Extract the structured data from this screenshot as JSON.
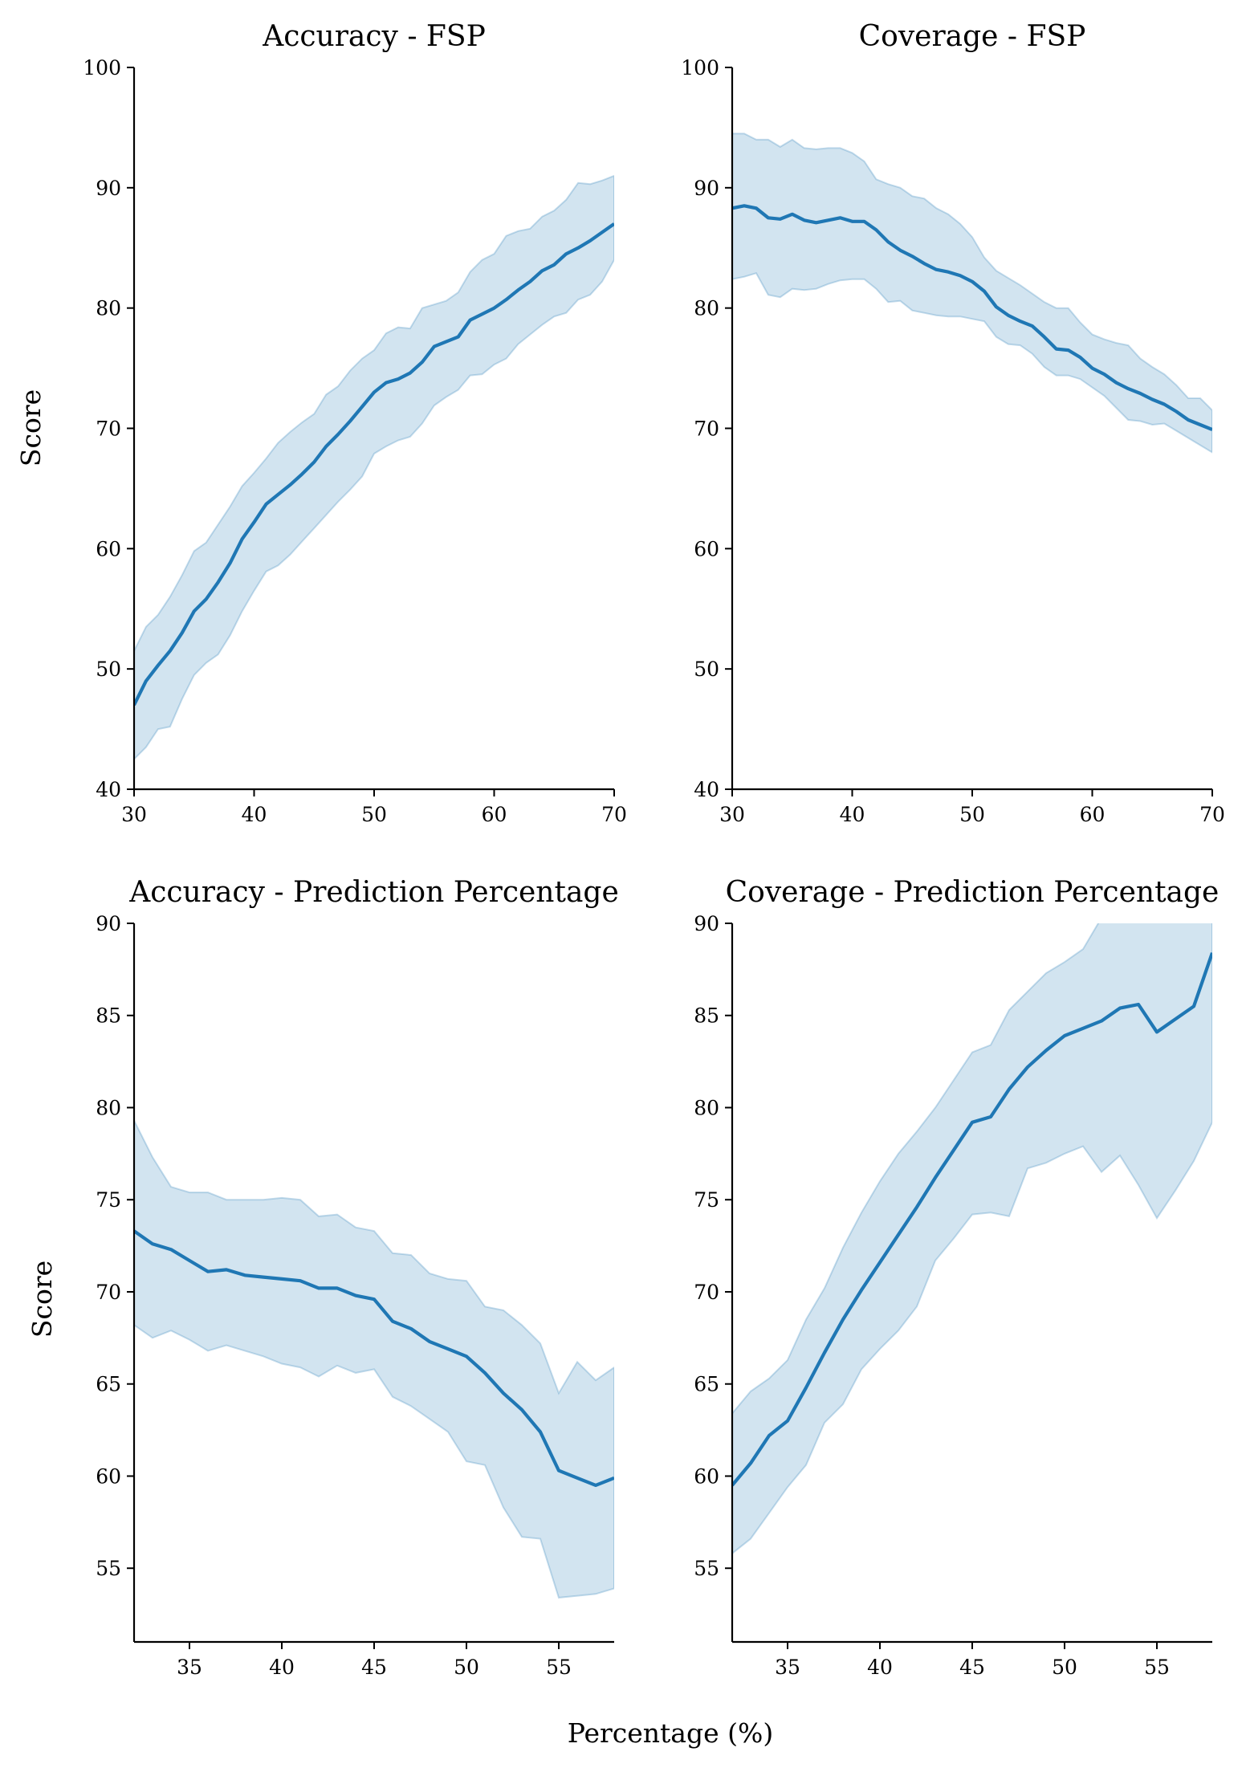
{
  "figure": {
    "xlabel": "Percentage (%)"
  },
  "style": {
    "line_color": "#1f77b4",
    "band_color": "#1f77b4",
    "band_opacity": 0.2,
    "axis_color": "#000000"
  },
  "chart_data": [
    {
      "type": "line",
      "title": "Accuracy - FSP",
      "ylabel": "Score",
      "xlim": [
        30,
        70
      ],
      "ylim": [
        40,
        100
      ],
      "xticks": [
        30,
        40,
        50,
        60,
        70
      ],
      "yticks": [
        40,
        50,
        60,
        70,
        80,
        90,
        100
      ],
      "grid": false,
      "x": [
        30,
        31,
        32,
        33,
        34,
        35,
        36,
        37,
        38,
        39,
        40,
        41,
        42,
        43,
        44,
        45,
        46,
        47,
        48,
        49,
        50,
        51,
        52,
        53,
        54,
        55,
        56,
        57,
        58,
        59,
        60,
        61,
        62,
        63,
        64,
        65,
        66,
        67,
        68,
        69,
        70
      ],
      "series": [
        {
          "mean": [
            47,
            49,
            50.3,
            51.5,
            53,
            54.8,
            55.8,
            57.2,
            58.8,
            60.8,
            62.2,
            63.7,
            64.5,
            65.3,
            66.2,
            67.2,
            68.5,
            69.5,
            70.6,
            71.8,
            73,
            73.8,
            74.1,
            74.6,
            75.5,
            76.8,
            77.2,
            77.6,
            79,
            79.5,
            80,
            80.7,
            81.5,
            82.2,
            83.1,
            83.6,
            84.5,
            85,
            85.6,
            86.3,
            87
          ],
          "upper": [
            51.5,
            53.5,
            54.5,
            56,
            57.8,
            59.8,
            60.5,
            62,
            63.5,
            65.2,
            66.3,
            67.5,
            68.8,
            69.7,
            70.5,
            71.2,
            72.8,
            73.5,
            74.8,
            75.8,
            76.5,
            77.9,
            78.4,
            78.3,
            80,
            80.3,
            80.6,
            81.3,
            83,
            84,
            84.5,
            86,
            86.4,
            86.6,
            87.6,
            88.1,
            89,
            90.4,
            90.3,
            90.6,
            91
          ],
          "lower": [
            42.5,
            43.5,
            45,
            45.2,
            47.5,
            49.5,
            50.5,
            51.2,
            52.8,
            54.8,
            56.5,
            58.1,
            58.6,
            59.5,
            60.6,
            61.7,
            62.8,
            63.9,
            64.9,
            66,
            67.9,
            68.5,
            69,
            69.3,
            70.4,
            71.9,
            72.6,
            73.2,
            74.4,
            74.5,
            75.3,
            75.8,
            77,
            77.8,
            78.6,
            79.3,
            79.6,
            80.7,
            81.1,
            82.2,
            84
          ]
        }
      ]
    },
    {
      "type": "line",
      "title": "Coverage - FSP",
      "xlim": [
        30,
        70
      ],
      "ylim": [
        40,
        100
      ],
      "xticks": [
        30,
        40,
        50,
        60,
        70
      ],
      "yticks": [
        40,
        50,
        60,
        70,
        80,
        90,
        100
      ],
      "grid": false,
      "x": [
        30,
        31,
        32,
        33,
        34,
        35,
        36,
        37,
        38,
        39,
        40,
        41,
        42,
        43,
        44,
        45,
        46,
        47,
        48,
        49,
        50,
        51,
        52,
        53,
        54,
        55,
        56,
        57,
        58,
        59,
        60,
        61,
        62,
        63,
        64,
        65,
        66,
        67,
        68,
        69,
        70
      ],
      "series": [
        {
          "mean": [
            88.3,
            88.5,
            88.3,
            87.5,
            87.4,
            87.8,
            87.3,
            87.1,
            87.3,
            87.5,
            87.2,
            87.2,
            86.5,
            85.5,
            84.8,
            84.3,
            83.7,
            83.2,
            83,
            82.7,
            82.2,
            81.4,
            80.1,
            79.4,
            78.9,
            78.5,
            77.6,
            76.6,
            76.5,
            75.9,
            75,
            74.5,
            73.8,
            73.3,
            72.9,
            72.4,
            72,
            71.4,
            70.7,
            70.3,
            69.9
          ],
          "upper": [
            94.5,
            94.5,
            94,
            94,
            93.4,
            94,
            93.3,
            93.2,
            93.3,
            93.3,
            92.9,
            92.2,
            90.7,
            90.3,
            90,
            89.3,
            89.1,
            88.3,
            87.8,
            87,
            85.9,
            84.2,
            83.1,
            82.5,
            81.9,
            81.2,
            80.5,
            80,
            80,
            78.8,
            77.8,
            77.4,
            77.1,
            76.9,
            75.8,
            75.1,
            74.5,
            73.6,
            72.5,
            72.5,
            71.5
          ],
          "lower": [
            82.4,
            82.6,
            82.9,
            81.1,
            80.9,
            81.6,
            81.5,
            81.6,
            82,
            82.3,
            82.4,
            82.4,
            81.6,
            80.5,
            80.6,
            79.8,
            79.6,
            79.4,
            79.3,
            79.3,
            79.1,
            78.9,
            77.6,
            77,
            76.9,
            76.2,
            75.1,
            74.4,
            74.4,
            74.1,
            73.4,
            72.7,
            71.7,
            70.7,
            70.6,
            70.3,
            70.4,
            69.8,
            69.2,
            68.6,
            68
          ]
        }
      ]
    },
    {
      "type": "line",
      "title": "Accuracy - Prediction Percentage",
      "ylabel": "Score",
      "xlim": [
        32,
        58
      ],
      "ylim": [
        51,
        90
      ],
      "xticks": [
        35,
        40,
        45,
        50,
        55
      ],
      "yticks": [
        55,
        60,
        65,
        70,
        75,
        80,
        85,
        90
      ],
      "grid": false,
      "x": [
        32,
        33,
        34,
        35,
        36,
        37,
        38,
        39,
        40,
        41,
        42,
        43,
        44,
        45,
        46,
        47,
        48,
        49,
        50,
        51,
        52,
        53,
        54,
        55,
        56,
        57,
        58
      ],
      "series": [
        {
          "mean": [
            73.3,
            72.6,
            72.3,
            71.7,
            71.1,
            71.2,
            70.9,
            70.8,
            70.7,
            70.6,
            70.2,
            70.2,
            69.8,
            69.6,
            68.4,
            68,
            67.3,
            66.9,
            66.5,
            65.6,
            64.5,
            63.6,
            62.4,
            60.3,
            59.9,
            59.5,
            59.9
          ],
          "upper": [
            79.3,
            77.3,
            75.7,
            75.4,
            75.4,
            75,
            75,
            75,
            75.1,
            75,
            74.1,
            74.2,
            73.5,
            73.3,
            72.1,
            72,
            71,
            70.7,
            70.6,
            69.2,
            69,
            68.2,
            67.2,
            64.5,
            66.2,
            65.2,
            65.9
          ],
          "lower": [
            68.2,
            67.5,
            67.9,
            67.4,
            66.8,
            67.1,
            66.8,
            66.5,
            66.1,
            65.9,
            65.4,
            66,
            65.6,
            65.8,
            64.3,
            63.8,
            63.1,
            62.4,
            60.8,
            60.6,
            58.3,
            56.7,
            56.6,
            53.4,
            53.5,
            53.6,
            53.9
          ]
        }
      ]
    },
    {
      "type": "line",
      "title": "Coverage - Prediction Percentage",
      "xlim": [
        32,
        58
      ],
      "ylim": [
        51,
        90
      ],
      "xticks": [
        35,
        40,
        45,
        50,
        55
      ],
      "yticks": [
        55,
        60,
        65,
        70,
        75,
        80,
        85,
        90
      ],
      "grid": false,
      "x": [
        32,
        33,
        34,
        35,
        36,
        37,
        38,
        39,
        40,
        41,
        42,
        43,
        44,
        45,
        46,
        47,
        48,
        49,
        50,
        51,
        52,
        53,
        54,
        55,
        56,
        57,
        58
      ],
      "series": [
        {
          "mean": [
            59.5,
            60.7,
            62.2,
            63,
            64.8,
            66.7,
            68.5,
            70.1,
            71.6,
            73.1,
            74.6,
            76.2,
            77.7,
            79.2,
            79.5,
            81,
            82.2,
            83.1,
            83.9,
            84.3,
            84.7,
            85.4,
            85.6,
            84.1,
            84.8,
            85.5,
            88.4
          ],
          "upper": [
            63.4,
            64.6,
            65.3,
            66.3,
            68.5,
            70.2,
            72.4,
            74.3,
            76,
            77.5,
            78.7,
            80,
            81.5,
            83,
            83.4,
            85.3,
            86.3,
            87.3,
            87.9,
            88.6,
            90.3,
            91,
            91.3,
            92,
            92.8,
            94,
            96
          ],
          "lower": [
            55.8,
            56.6,
            58,
            59.4,
            60.6,
            62.9,
            63.9,
            65.8,
            66.9,
            67.9,
            69.2,
            71.7,
            72.9,
            74.2,
            74.3,
            74.1,
            76.7,
            77,
            77.5,
            77.9,
            76.5,
            77.4,
            75.8,
            74,
            75.5,
            77.1,
            79.2
          ]
        }
      ]
    }
  ]
}
